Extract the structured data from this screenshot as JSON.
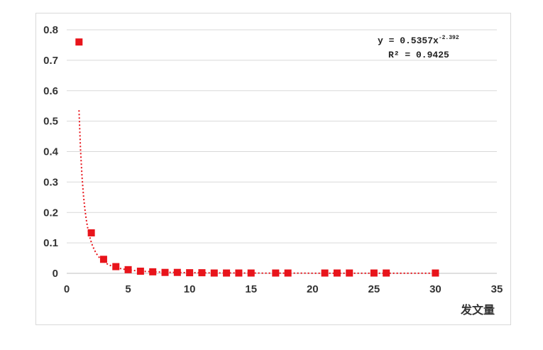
{
  "chart_data": {
    "type": "scatter",
    "title": "",
    "xlabel": "发文量",
    "ylabel": "",
    "xlim": [
      0,
      35
    ],
    "ylim": [
      0,
      0.8
    ],
    "xticks": [
      "0",
      "5",
      "10",
      "15",
      "20",
      "25",
      "30",
      "35"
    ],
    "yticks": [
      "0",
      "0.1",
      "0.2",
      "0.3",
      "0.4",
      "0.5",
      "0.6",
      "0.7",
      "0.8"
    ],
    "grid": "horizontal",
    "legend": "none",
    "marker_color": "#e8141b",
    "trendline_color": "#e8141b",
    "series": [
      {
        "x": [
          1,
          2,
          3,
          4,
          5,
          6,
          7,
          8,
          9,
          10,
          11,
          12,
          13,
          14,
          15,
          17,
          18,
          21,
          22,
          23,
          25,
          26,
          30
        ],
        "y": [
          0.76,
          0.133,
          0.046,
          0.022,
          0.012,
          0.007,
          0.005,
          0.003,
          0.003,
          0.002,
          0.002,
          0.001,
          0.001,
          0.001,
          0.001,
          0.001,
          0.001,
          0.001,
          0.001,
          0.001,
          0.001,
          0.001,
          0.001
        ]
      }
    ],
    "trendline": {
      "type": "power",
      "a": 0.5357,
      "b": -2.392,
      "x_range": [
        1,
        30
      ],
      "equation_main": "y = 0.5357x",
      "equation_exponent": "-2.392",
      "r2_label": "R² = 0.9425"
    }
  }
}
